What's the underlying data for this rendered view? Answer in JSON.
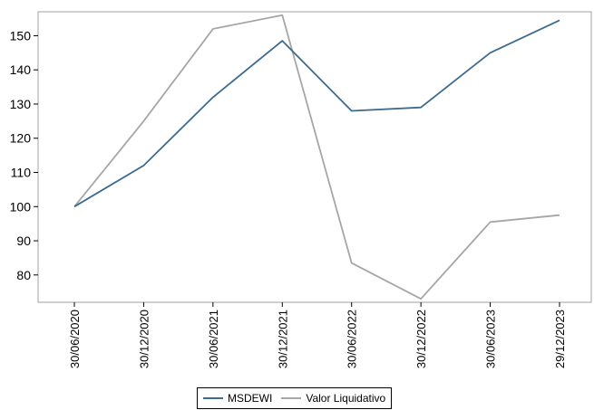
{
  "chart_data": {
    "type": "line",
    "title": "",
    "xlabel": "",
    "ylabel": "",
    "categories": [
      "30/06/2020",
      "30/12/2020",
      "30/06/2021",
      "30/12/2021",
      "30/06/2022",
      "30/12/2022",
      "30/06/2023",
      "29/12/2023"
    ],
    "ylim": [
      72,
      157
    ],
    "yticks": [
      80,
      90,
      100,
      110,
      120,
      130,
      140,
      150
    ],
    "grid": false,
    "legend_position": "bottom",
    "series": [
      {
        "name": "MSDEWI",
        "color": "#3d6a8f",
        "values": [
          100,
          112,
          132,
          148.5,
          128,
          129,
          145,
          154.5
        ]
      },
      {
        "name": "Valor Liquidativo",
        "color": "#a6a6a6",
        "values": [
          100,
          125,
          152,
          156,
          83.5,
          73,
          95.5,
          97.5
        ]
      }
    ]
  }
}
